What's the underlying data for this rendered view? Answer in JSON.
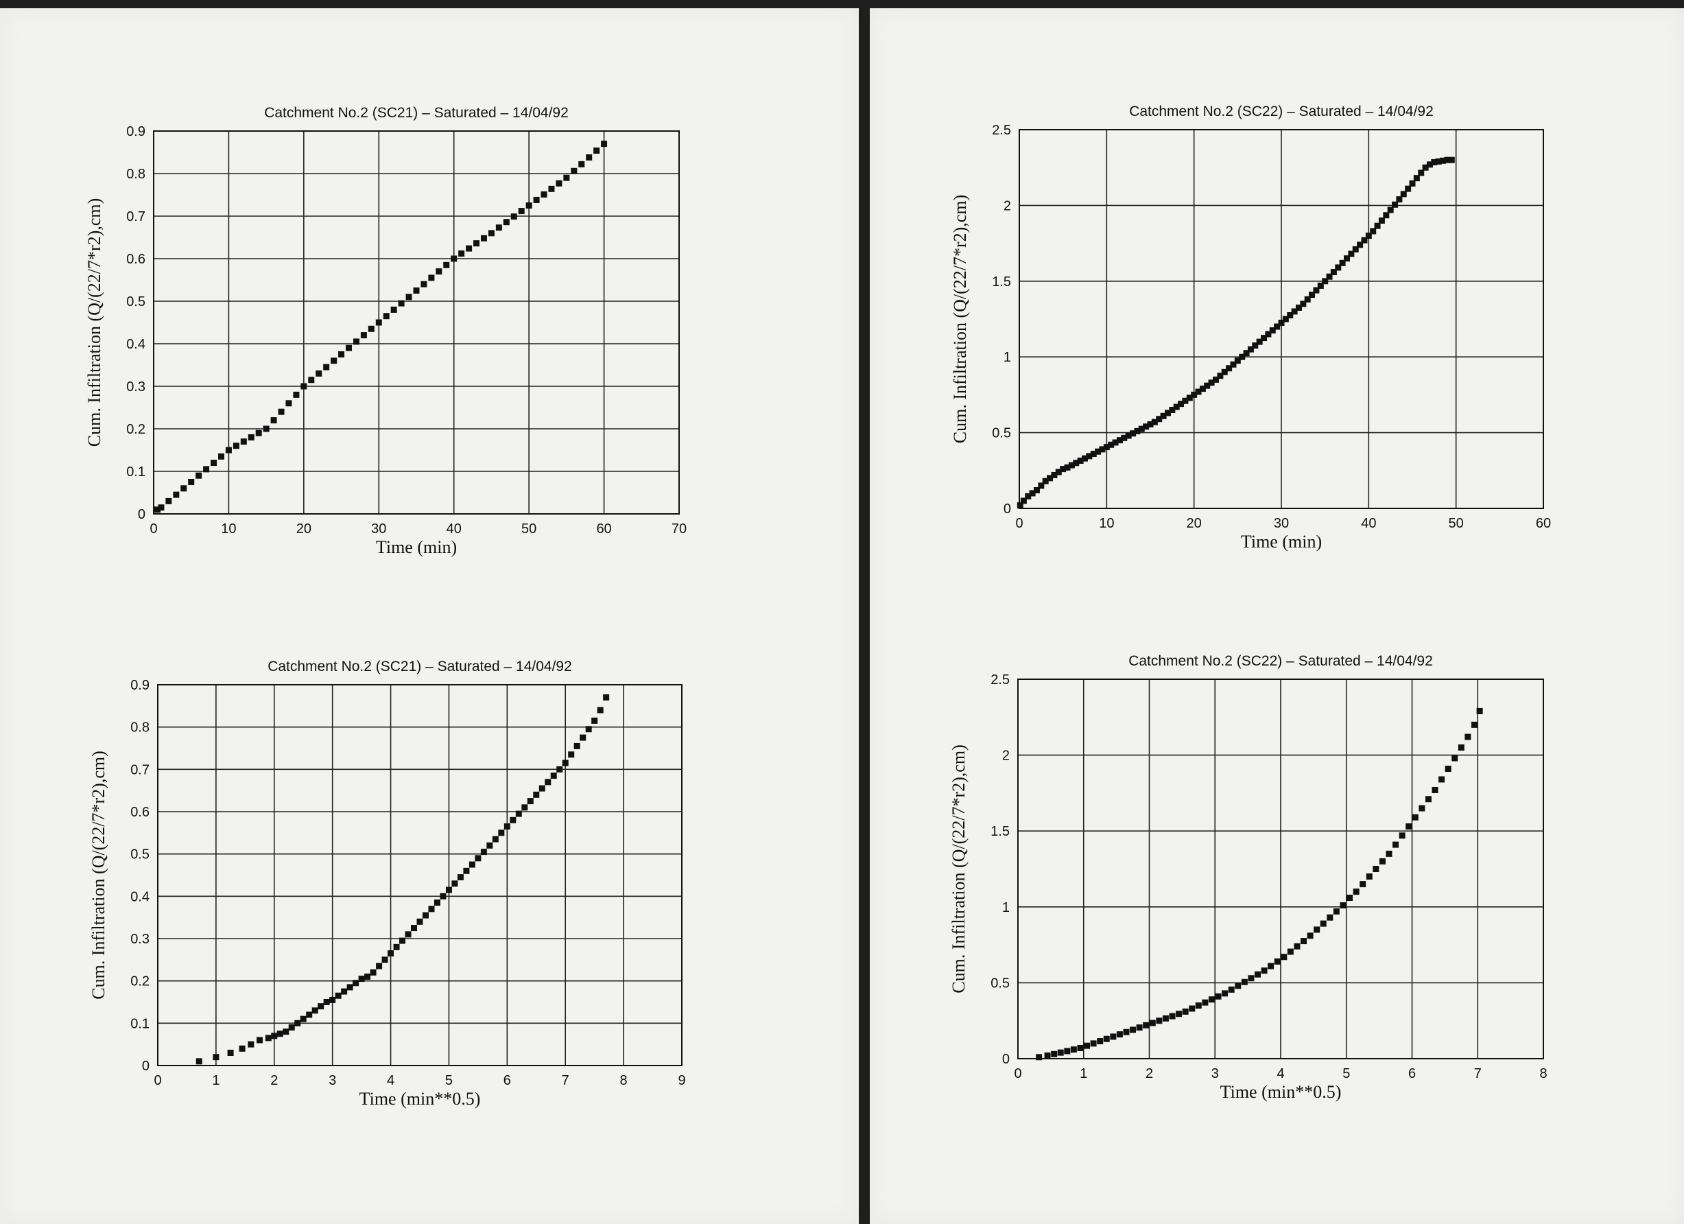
{
  "chart_data": [
    {
      "id": "sc21-time",
      "type": "scatter",
      "title": "Catchment No.2 (SC21)  –  Saturated  –  14/04/92",
      "xlabel": "Time (min)",
      "ylabel": "Cum. Infiltration (Q/(22/7*r2),cm)",
      "xlim": [
        0,
        70
      ],
      "ylim": [
        0,
        0.9
      ],
      "xticks": [
        0,
        10,
        20,
        30,
        40,
        50,
        60,
        70
      ],
      "yticks": [
        0,
        0.1,
        0.2,
        0.3,
        0.4,
        0.5,
        0.6,
        0.7,
        0.8,
        0.9
      ],
      "grid": true,
      "x": [
        0.5,
        1,
        2,
        3,
        4,
        5,
        6,
        7,
        8,
        9,
        10,
        11,
        12,
        13,
        14,
        15,
        16,
        17,
        18,
        19,
        20,
        21,
        22,
        23,
        24,
        25,
        26,
        27,
        28,
        29,
        30,
        31,
        32,
        33,
        34,
        35,
        36,
        37,
        38,
        39,
        40,
        41,
        42,
        43,
        44,
        45,
        46,
        47,
        48,
        49,
        50,
        51,
        52,
        53,
        54,
        55,
        56,
        57,
        58,
        59,
        60
      ],
      "y": [
        0.01,
        0.015,
        0.03,
        0.045,
        0.06,
        0.075,
        0.09,
        0.105,
        0.12,
        0.135,
        0.15,
        0.16,
        0.17,
        0.18,
        0.19,
        0.2,
        0.22,
        0.24,
        0.26,
        0.28,
        0.3,
        0.315,
        0.33,
        0.345,
        0.36,
        0.375,
        0.39,
        0.405,
        0.42,
        0.435,
        0.45,
        0.465,
        0.48,
        0.495,
        0.51,
        0.525,
        0.54,
        0.555,
        0.57,
        0.585,
        0.6,
        0.612,
        0.624,
        0.636,
        0.648,
        0.66,
        0.673,
        0.686,
        0.699,
        0.712,
        0.725,
        0.738,
        0.751,
        0.764,
        0.777,
        0.79,
        0.806,
        0.822,
        0.838,
        0.854,
        0.87
      ]
    },
    {
      "id": "sc22-time",
      "type": "scatter",
      "title": "Catchment No.2 (SC22)  –  Saturated  –  14/04/92",
      "xlabel": "Time (min)",
      "ylabel": "Cum. Infiltration (Q/(22/7*r2),cm)",
      "xlim": [
        0,
        60
      ],
      "ylim": [
        0,
        2.5
      ],
      "xticks": [
        0,
        10,
        20,
        30,
        40,
        50,
        60
      ],
      "yticks": [
        0,
        0.5,
        1,
        1.5,
        2,
        2.5
      ],
      "grid": true,
      "x": [
        0.1,
        0.5,
        1,
        1.5,
        2,
        2.5,
        3,
        3.5,
        4,
        4.5,
        5,
        5.5,
        6,
        6.5,
        7,
        7.5,
        8,
        8.5,
        9,
        9.5,
        10,
        10.5,
        11,
        11.5,
        12,
        12.5,
        13,
        13.5,
        14,
        14.5,
        15,
        15.5,
        16,
        16.5,
        17,
        17.5,
        18,
        18.5,
        19,
        19.5,
        20,
        20.5,
        21,
        21.5,
        22,
        22.5,
        23,
        23.5,
        24,
        24.5,
        25,
        25.5,
        26,
        26.5,
        27,
        27.5,
        28,
        28.5,
        29,
        29.5,
        30,
        30.5,
        31,
        31.5,
        32,
        32.5,
        33,
        33.5,
        34,
        34.5,
        35,
        35.5,
        36,
        36.5,
        37,
        37.5,
        38,
        38.5,
        39,
        39.5,
        40,
        40.5,
        41,
        41.5,
        42,
        42.5,
        43,
        43.5,
        44,
        44.5,
        45,
        45.5,
        46,
        46.5,
        47,
        47.5,
        48,
        48.5,
        49,
        49.5
      ],
      "y": [
        0.02,
        0.05,
        0.08,
        0.1,
        0.12,
        0.15,
        0.18,
        0.2,
        0.22,
        0.24,
        0.26,
        0.27,
        0.285,
        0.3,
        0.315,
        0.33,
        0.345,
        0.36,
        0.375,
        0.39,
        0.405,
        0.42,
        0.435,
        0.45,
        0.465,
        0.48,
        0.495,
        0.51,
        0.525,
        0.54,
        0.555,
        0.57,
        0.59,
        0.61,
        0.63,
        0.65,
        0.67,
        0.69,
        0.71,
        0.73,
        0.75,
        0.77,
        0.79,
        0.81,
        0.83,
        0.85,
        0.875,
        0.9,
        0.925,
        0.95,
        0.975,
        1.0,
        1.025,
        1.05,
        1.075,
        1.1,
        1.125,
        1.15,
        1.175,
        1.2,
        1.225,
        1.25,
        1.275,
        1.3,
        1.325,
        1.35,
        1.38,
        1.41,
        1.44,
        1.47,
        1.5,
        1.53,
        1.56,
        1.59,
        1.62,
        1.65,
        1.68,
        1.71,
        1.74,
        1.77,
        1.8,
        1.83,
        1.865,
        1.9,
        1.935,
        1.97,
        2.005,
        2.04,
        2.075,
        2.11,
        2.145,
        2.18,
        2.215,
        2.25,
        2.27,
        2.285,
        2.29,
        2.295,
        2.3,
        2.3
      ]
    },
    {
      "id": "sc21-sqrt",
      "type": "scatter",
      "title": "Catchment No.2 (SC21)  –  Saturated  –  14/04/92",
      "xlabel": "Time (min**0.5)",
      "ylabel": "Cum. Infiltration (Q/(22/7*r2),cm)",
      "xlim": [
        0,
        9
      ],
      "ylim": [
        0,
        0.9
      ],
      "xticks": [
        0,
        1,
        2,
        3,
        4,
        5,
        6,
        7,
        8,
        9
      ],
      "yticks": [
        0,
        0.1,
        0.2,
        0.3,
        0.4,
        0.5,
        0.6,
        0.7,
        0.8,
        0.9
      ],
      "grid": true,
      "x": [
        0.71,
        1.0,
        1.25,
        1.45,
        1.6,
        1.75,
        1.9,
        2.0,
        2.1,
        2.2,
        2.3,
        2.4,
        2.5,
        2.6,
        2.7,
        2.8,
        2.9,
        3.0,
        3.1,
        3.2,
        3.3,
        3.4,
        3.5,
        3.6,
        3.7,
        3.8,
        3.9,
        4.0,
        4.1,
        4.2,
        4.3,
        4.4,
        4.5,
        4.6,
        4.7,
        4.8,
        4.9,
        5.0,
        5.1,
        5.2,
        5.3,
        5.4,
        5.5,
        5.6,
        5.7,
        5.8,
        5.9,
        6.0,
        6.1,
        6.2,
        6.3,
        6.4,
        6.5,
        6.6,
        6.7,
        6.8,
        6.9,
        7.0,
        7.1,
        7.2,
        7.3,
        7.4,
        7.5,
        7.6,
        7.7
      ],
      "y": [
        0.01,
        0.02,
        0.03,
        0.04,
        0.05,
        0.06,
        0.065,
        0.07,
        0.075,
        0.08,
        0.09,
        0.1,
        0.11,
        0.12,
        0.13,
        0.14,
        0.15,
        0.155,
        0.165,
        0.175,
        0.185,
        0.195,
        0.205,
        0.21,
        0.22,
        0.235,
        0.25,
        0.265,
        0.28,
        0.295,
        0.31,
        0.325,
        0.34,
        0.355,
        0.37,
        0.385,
        0.4,
        0.415,
        0.43,
        0.445,
        0.46,
        0.475,
        0.49,
        0.505,
        0.52,
        0.535,
        0.55,
        0.565,
        0.58,
        0.595,
        0.61,
        0.625,
        0.64,
        0.655,
        0.67,
        0.685,
        0.7,
        0.715,
        0.735,
        0.755,
        0.775,
        0.795,
        0.815,
        0.84,
        0.87
      ]
    },
    {
      "id": "sc22-sqrt",
      "type": "scatter",
      "title": "Catchment No.2 (SC22)  –  Saturated  –  14/04/92",
      "xlabel": "Time (min**0.5)",
      "ylabel": "Cum. Infiltration (Q/(22/7*r2),cm)",
      "xlim": [
        0,
        8
      ],
      "ylim": [
        0,
        2.5
      ],
      "xticks": [
        0,
        1,
        2,
        3,
        4,
        5,
        6,
        7,
        8
      ],
      "yticks": [
        0,
        0.5,
        1,
        1.5,
        2,
        2.5
      ],
      "grid": true,
      "x": [
        0.32,
        0.45,
        0.55,
        0.65,
        0.75,
        0.85,
        0.95,
        1.05,
        1.15,
        1.25,
        1.35,
        1.45,
        1.55,
        1.65,
        1.75,
        1.85,
        1.95,
        2.05,
        2.15,
        2.25,
        2.35,
        2.45,
        2.55,
        2.65,
        2.75,
        2.85,
        2.95,
        3.05,
        3.15,
        3.25,
        3.35,
        3.45,
        3.55,
        3.65,
        3.75,
        3.85,
        3.95,
        4.05,
        4.15,
        4.25,
        4.35,
        4.45,
        4.55,
        4.65,
        4.75,
        4.85,
        4.95,
        5.05,
        5.15,
        5.25,
        5.35,
        5.45,
        5.55,
        5.65,
        5.75,
        5.85,
        5.95,
        6.05,
        6.15,
        6.25,
        6.35,
        6.45,
        6.55,
        6.65,
        6.75,
        6.85,
        6.95,
        7.03
      ],
      "y": [
        0.01,
        0.02,
        0.03,
        0.04,
        0.05,
        0.06,
        0.07,
        0.085,
        0.1,
        0.115,
        0.13,
        0.145,
        0.16,
        0.175,
        0.19,
        0.205,
        0.22,
        0.235,
        0.25,
        0.265,
        0.28,
        0.295,
        0.31,
        0.33,
        0.35,
        0.37,
        0.39,
        0.41,
        0.43,
        0.455,
        0.48,
        0.505,
        0.53,
        0.555,
        0.58,
        0.61,
        0.64,
        0.67,
        0.705,
        0.74,
        0.775,
        0.81,
        0.85,
        0.89,
        0.93,
        0.97,
        1.01,
        1.06,
        1.1,
        1.15,
        1.2,
        1.25,
        1.3,
        1.35,
        1.41,
        1.47,
        1.53,
        1.59,
        1.65,
        1.71,
        1.77,
        1.84,
        1.91,
        1.98,
        2.05,
        2.12,
        2.2,
        2.29
      ]
    }
  ]
}
